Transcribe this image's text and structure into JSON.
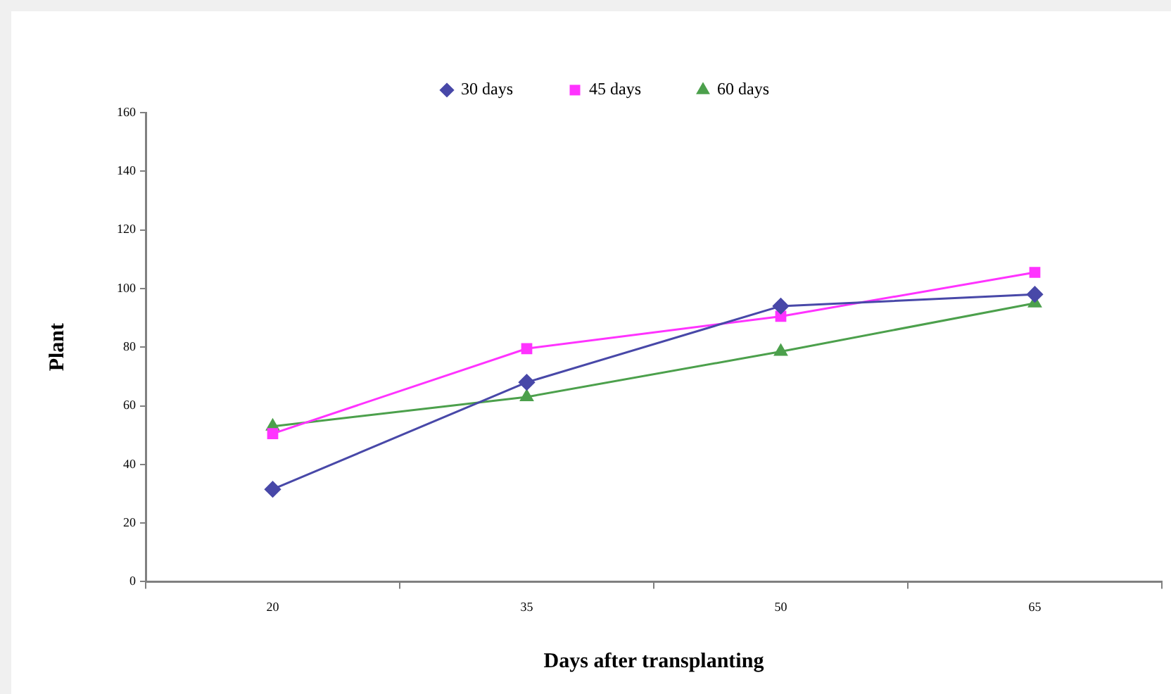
{
  "chart_data": {
    "type": "line",
    "xlabel": "Days after transplanting",
    "ylabel": "Plant",
    "categories": [
      "20",
      "35",
      "50",
      "65"
    ],
    "series": [
      {
        "name": "30 days",
        "color": "#4848a8",
        "marker": "diamond",
        "values": [
          31.5,
          68,
          94,
          98
        ]
      },
      {
        "name": "45 days",
        "color": "#ff33ff",
        "marker": "square",
        "values": [
          50.5,
          79.5,
          90.5,
          105.5
        ]
      },
      {
        "name": "60 days",
        "color": "#4ca04c",
        "marker": "triangle",
        "values": [
          53,
          63,
          78.5,
          95
        ]
      }
    ],
    "ylim": [
      0,
      160
    ],
    "yticks": [
      0,
      20,
      40,
      60,
      80,
      100,
      120,
      140,
      160
    ],
    "grid": false,
    "legend": "top",
    "line_style": "solid"
  }
}
